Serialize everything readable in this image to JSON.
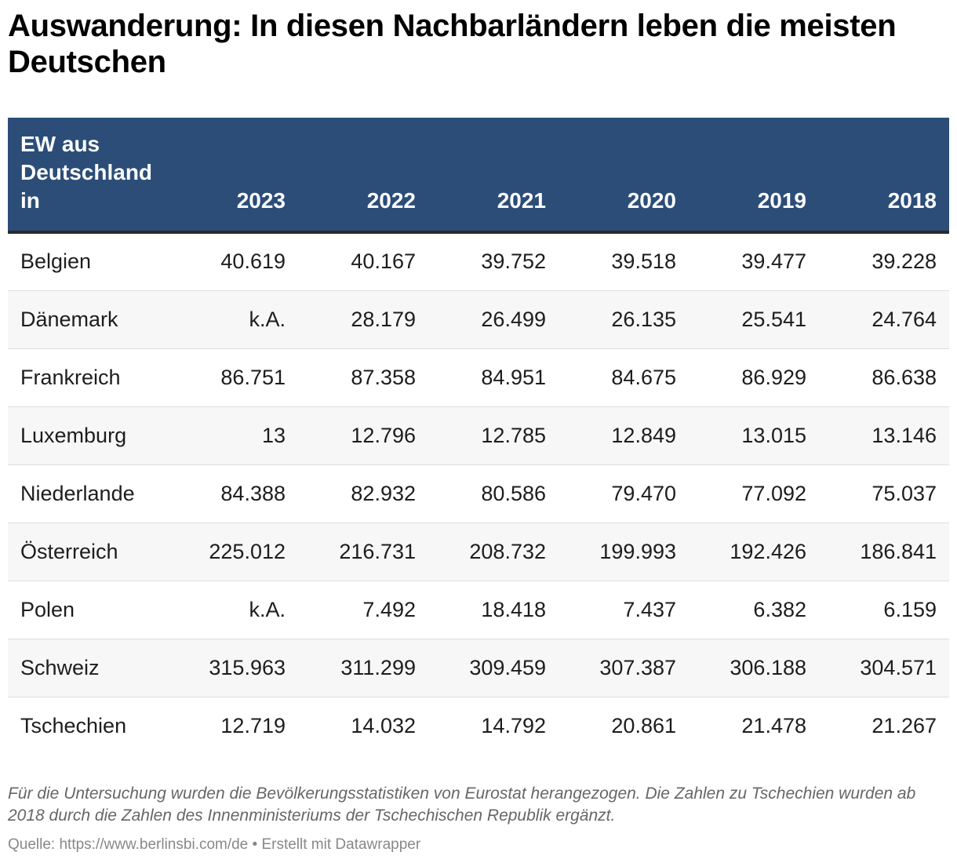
{
  "title": "Auswanderung: In diesen Nachbarländern leben die meisten Deutschen",
  "chart_data": {
    "type": "table",
    "title": "Auswanderung: In diesen Nachbarländern leben die meisten Deutschen",
    "columns": [
      "EW aus Deutschland in",
      "2023",
      "2022",
      "2021",
      "2020",
      "2019",
      "2018"
    ],
    "rows": [
      {
        "country": "Belgien",
        "values": [
          "40.619",
          "40.167",
          "39.752",
          "39.518",
          "39.477",
          "39.228"
        ]
      },
      {
        "country": "Dänemark",
        "values": [
          "k.A.",
          "28.179",
          "26.499",
          "26.135",
          "25.541",
          "24.764"
        ]
      },
      {
        "country": "Frankreich",
        "values": [
          "86.751",
          "87.358",
          "84.951",
          "84.675",
          "86.929",
          "86.638"
        ]
      },
      {
        "country": "Luxemburg",
        "values": [
          "13",
          "12.796",
          "12.785",
          "12.849",
          "13.015",
          "13.146"
        ]
      },
      {
        "country": "Niederlande",
        "values": [
          "84.388",
          "82.932",
          "80.586",
          "79.470",
          "77.092",
          "75.037"
        ]
      },
      {
        "country": "Österreich",
        "values": [
          "225.012",
          "216.731",
          "208.732",
          "199.993",
          "192.426",
          "186.841"
        ]
      },
      {
        "country": "Polen",
        "values": [
          "k.A.",
          "7.492",
          "18.418",
          "7.437",
          "6.382",
          "6.159"
        ]
      },
      {
        "country": "Schweiz",
        "values": [
          "315.963",
          "311.299",
          "309.459",
          "307.387",
          "306.188",
          "304.571"
        ]
      },
      {
        "country": "Tschechien",
        "values": [
          "12.719",
          "14.032",
          "14.792",
          "20.861",
          "21.478",
          "21.267"
        ]
      }
    ]
  },
  "notes": "Für die Untersuchung wurden die Bevölkerungsstatistiken von Eurostat herangezogen. Die Zahlen zu Tschechien wurden ab 2018 durch die Zahlen des Innenministeriums der Tschechischen Republik ergänzt.",
  "source": "Quelle: https://www.berlinsbi.com/de • Erstellt mit Datawrapper",
  "colors": {
    "header_background": "#2b4d78",
    "header_text": "#ffffff",
    "stripe": "#f7f7f7"
  }
}
